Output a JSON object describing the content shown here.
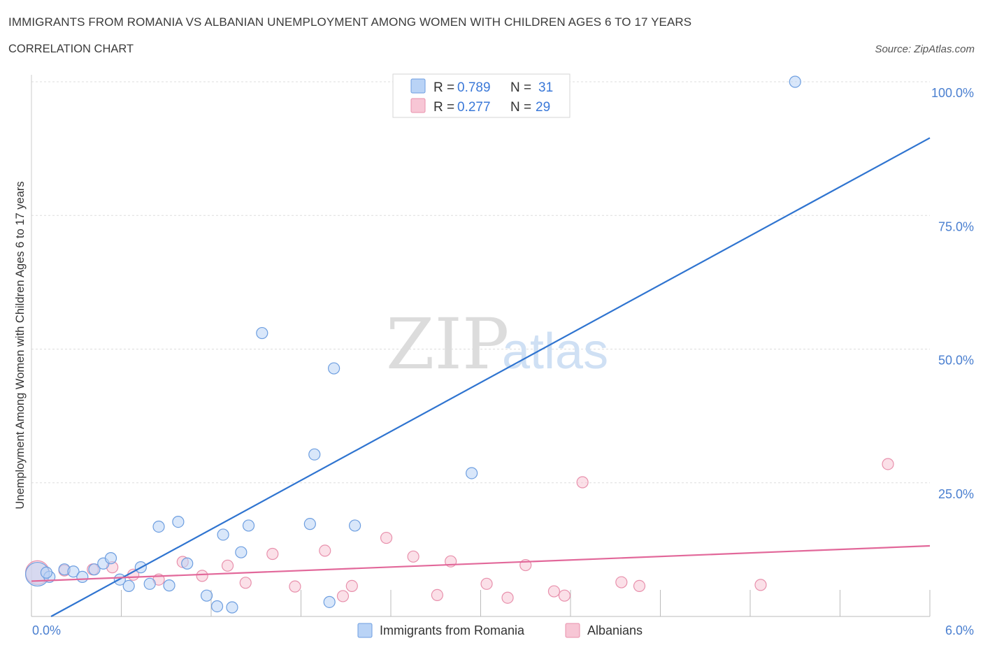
{
  "header": {
    "title": "IMMIGRANTS FROM ROMANIA VS ALBANIAN UNEMPLOYMENT AMONG WOMEN WITH CHILDREN AGES 6 TO 17 YEARS",
    "subtitle": "CORRELATION CHART",
    "source": "Source: ZipAtlas.com"
  },
  "watermark": {
    "zip": "ZIP",
    "atlas": "atlas"
  },
  "colors": {
    "blue_fill": "#b9d3f6",
    "blue_stroke": "#6d9ee0",
    "blue_line": "#2f74d0",
    "pink_fill": "#f7c6d5",
    "pink_stroke": "#e890ac",
    "pink_line": "#e2689a",
    "grid": "#dddddd",
    "tick_label": "#4a7fd0"
  },
  "legend_top": {
    "rows": [
      {
        "r_label": "R =",
        "r_value": "0.789",
        "n_label": "N =",
        "n_value": "31",
        "color": "blue"
      },
      {
        "r_label": "R =",
        "r_value": "0.277",
        "n_label": "N =",
        "n_value": "29",
        "color": "pink"
      }
    ]
  },
  "chart_data": {
    "type": "scatter",
    "title": "IMMIGRANTS FROM ROMANIA VS ALBANIAN UNEMPLOYMENT AMONG WOMEN WITH CHILDREN AGES 6 TO 17 YEARS",
    "subtitle": "CORRELATION CHART",
    "xlabel": "",
    "ylabel": "Unemployment Among Women with Children Ages 6 to 17 years",
    "xlim": [
      0,
      6
    ],
    "ylim": [
      0,
      100
    ],
    "x_ticks": [
      0,
      0.6,
      1.2,
      1.8,
      2.4,
      3.0,
      3.6,
      4.2,
      4.8,
      5.4,
      6.0
    ],
    "x_tick_labels": [
      {
        "value": 0,
        "label": "0.0%"
      },
      {
        "value": 6,
        "label": "6.0%"
      }
    ],
    "y_ticks": [
      25,
      50,
      75,
      100
    ],
    "y_tick_labels": [
      "25.0%",
      "50.0%",
      "75.0%",
      "100.0%"
    ],
    "grid": true,
    "legend_position": "bottom",
    "series": [
      {
        "name": "Immigrants from Romania",
        "color": "#6d9ee0",
        "r": 0.789,
        "n": 31,
        "trend": {
          "x": [
            0,
            6
          ],
          "y": [
            -2,
            89.5
          ]
        },
        "points": [
          {
            "x": 0.04,
            "y": 7.9,
            "size": "large"
          },
          {
            "x": 0.12,
            "y": 7.4
          },
          {
            "x": 0.22,
            "y": 8.8
          },
          {
            "x": 0.28,
            "y": 8.4
          },
          {
            "x": 0.34,
            "y": 7.4
          },
          {
            "x": 0.42,
            "y": 8.8
          },
          {
            "x": 0.48,
            "y": 9.9
          },
          {
            "x": 0.53,
            "y": 10.9
          },
          {
            "x": 0.59,
            "y": 6.9
          },
          {
            "x": 0.65,
            "y": 5.7
          },
          {
            "x": 0.73,
            "y": 9.2
          },
          {
            "x": 0.79,
            "y": 6.1
          },
          {
            "x": 0.85,
            "y": 16.8
          },
          {
            "x": 0.92,
            "y": 5.8
          },
          {
            "x": 0.98,
            "y": 17.7
          },
          {
            "x": 1.04,
            "y": 9.9
          },
          {
            "x": 1.17,
            "y": 3.9
          },
          {
            "x": 1.24,
            "y": 1.9
          },
          {
            "x": 1.28,
            "y": 15.3
          },
          {
            "x": 1.34,
            "y": 1.7
          },
          {
            "x": 1.4,
            "y": 12.0
          },
          {
            "x": 1.45,
            "y": 17.0
          },
          {
            "x": 1.54,
            "y": 53.0
          },
          {
            "x": 1.86,
            "y": 17.3
          },
          {
            "x": 1.89,
            "y": 30.3
          },
          {
            "x": 1.99,
            "y": 2.7
          },
          {
            "x": 2.02,
            "y": 46.4
          },
          {
            "x": 2.16,
            "y": 17.0
          },
          {
            "x": 2.94,
            "y": 26.8
          },
          {
            "x": 5.1,
            "y": 100.0
          },
          {
            "x": 0.1,
            "y": 8.2
          }
        ]
      },
      {
        "name": "Albanians",
        "color": "#e890ac",
        "r": 0.277,
        "n": 29,
        "trend": {
          "x": [
            0,
            6
          ],
          "y": [
            6.6,
            13.2
          ]
        },
        "points": [
          {
            "x": 0.04,
            "y": 8.2,
            "size": "large"
          },
          {
            "x": 0.22,
            "y": 8.6
          },
          {
            "x": 0.41,
            "y": 8.8
          },
          {
            "x": 0.54,
            "y": 9.2
          },
          {
            "x": 0.68,
            "y": 7.8
          },
          {
            "x": 0.85,
            "y": 6.9
          },
          {
            "x": 1.01,
            "y": 10.2
          },
          {
            "x": 1.14,
            "y": 7.6
          },
          {
            "x": 1.31,
            "y": 9.5
          },
          {
            "x": 1.43,
            "y": 6.3
          },
          {
            "x": 1.61,
            "y": 11.7
          },
          {
            "x": 1.76,
            "y": 5.6
          },
          {
            "x": 1.96,
            "y": 12.3
          },
          {
            "x": 2.08,
            "y": 3.8
          },
          {
            "x": 2.14,
            "y": 5.7
          },
          {
            "x": 2.37,
            "y": 14.7
          },
          {
            "x": 2.55,
            "y": 11.2
          },
          {
            "x": 2.71,
            "y": 4.0
          },
          {
            "x": 2.8,
            "y": 10.3
          },
          {
            "x": 3.04,
            "y": 6.1
          },
          {
            "x": 3.18,
            "y": 3.5
          },
          {
            "x": 3.3,
            "y": 9.6
          },
          {
            "x": 3.49,
            "y": 4.7
          },
          {
            "x": 3.56,
            "y": 3.9
          },
          {
            "x": 3.68,
            "y": 25.1
          },
          {
            "x": 3.94,
            "y": 6.4
          },
          {
            "x": 4.06,
            "y": 5.7
          },
          {
            "x": 4.87,
            "y": 5.9
          },
          {
            "x": 5.72,
            "y": 28.5
          }
        ]
      }
    ]
  }
}
